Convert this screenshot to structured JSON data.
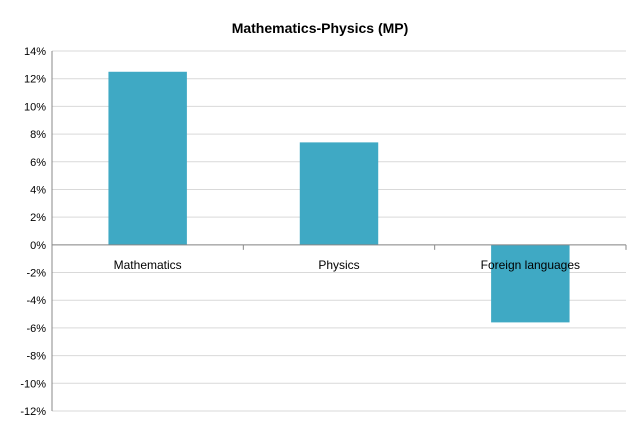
{
  "chart_data": {
    "type": "bar",
    "title": "Mathematics-Physics (MP)",
    "categories": [
      "Mathematics",
      "Physics",
      "Foreign languages"
    ],
    "values": [
      12.5,
      7.4,
      -5.6
    ],
    "ylim": [
      -12,
      14
    ],
    "yticks": [
      "14%",
      "12%",
      "10%",
      "8%",
      "6%",
      "4%",
      "2%",
      "0%",
      "-2%",
      "-4%",
      "-6%",
      "-8%",
      "-10%",
      "-12%"
    ],
    "ytick_values": [
      14,
      12,
      10,
      8,
      6,
      4,
      2,
      0,
      -2,
      -4,
      -6,
      -8,
      -10,
      -12
    ],
    "grid": true,
    "legend": "none",
    "bar_color": "#3fa9c4"
  }
}
